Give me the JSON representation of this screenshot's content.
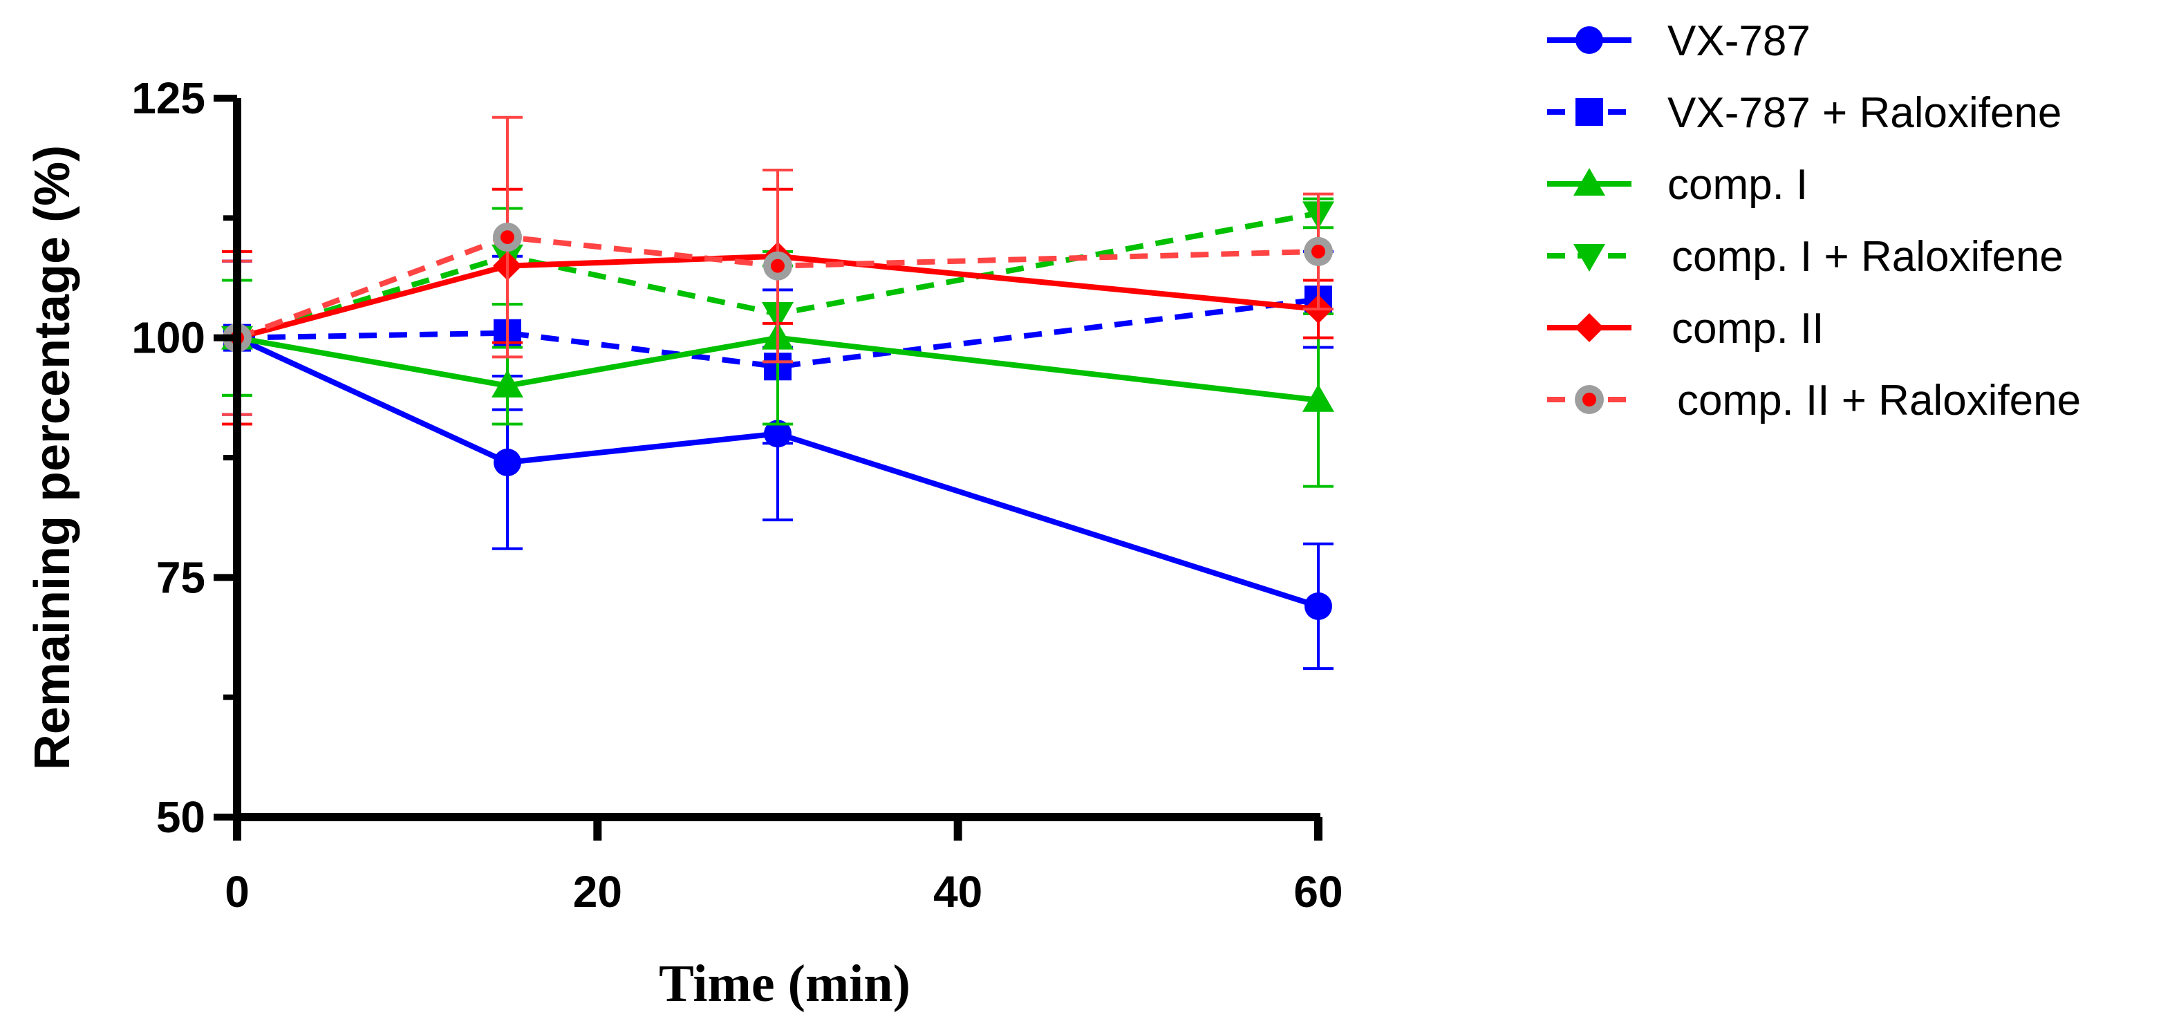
{
  "chart_data": {
    "type": "line",
    "title": "",
    "xlabel": "Time (min)",
    "ylabel": "Remaining percentage (%)",
    "xlim": [
      0,
      60
    ],
    "ylim": [
      50,
      125
    ],
    "x_ticks": [
      0,
      20,
      40,
      60
    ],
    "y_ticks": [
      50,
      75,
      100,
      125
    ],
    "x": [
      0,
      15,
      30,
      60
    ],
    "grid": false,
    "legend_position": "right",
    "series": [
      {
        "name": "VX-787",
        "color": "#0000ff",
        "dash": "solid",
        "marker": "circle",
        "values": [
          100,
          87,
          90,
          72
        ],
        "errors": [
          8,
          9,
          9,
          6.5
        ]
      },
      {
        "name": "VX-787 + Raloxifene",
        "color": "#0000ff",
        "dash": "dashed",
        "marker": "square",
        "values": [
          100,
          100.5,
          97,
          104
        ],
        "errors": [
          8,
          8,
          8,
          5
        ]
      },
      {
        "name": "comp. I",
        "color": "#00c000",
        "dash": "solid",
        "marker": "triangle-up",
        "values": [
          100,
          95,
          100,
          93.5
        ],
        "errors": [
          6,
          4,
          9,
          9
        ]
      },
      {
        "name": "comp. I + Raloxifene",
        "color": "#00c000",
        "dash": "dashed",
        "marker": "triangle-down",
        "values": [
          100,
          108.5,
          102.5,
          113
        ],
        "errors": [
          6,
          5,
          5,
          1.5
        ]
      },
      {
        "name": "comp. II",
        "color": "#ff0000",
        "dash": "solid",
        "marker": "diamond",
        "values": [
          100,
          107.5,
          108.5,
          103
        ],
        "errors": [
          9,
          8,
          7,
          3
        ]
      },
      {
        "name": "comp. II + Raloxifene",
        "color": "#ff4444",
        "dash": "dashed",
        "marker": "circle-gray-red",
        "values": [
          100,
          110.5,
          107.5,
          109
        ],
        "errors": [
          8,
          12.5,
          10,
          6
        ]
      }
    ]
  }
}
